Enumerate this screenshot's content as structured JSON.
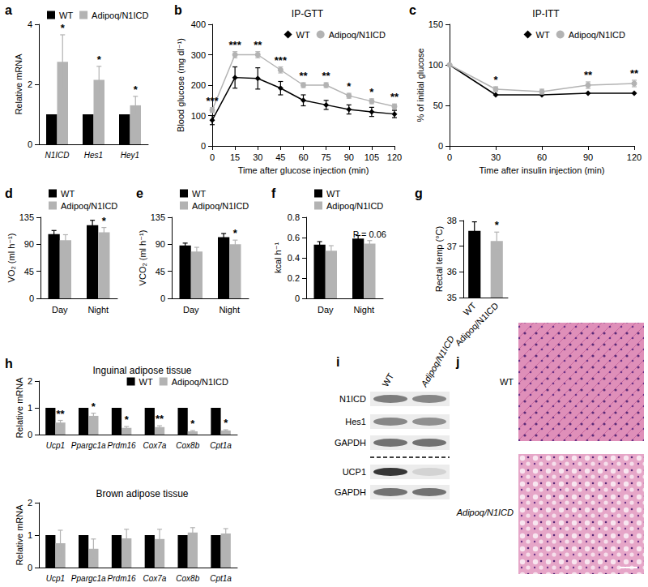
{
  "chart_data": [
    {
      "label": "a",
      "type": "bar",
      "categories": [
        "N1ICD",
        "Hes1",
        "Hey1"
      ],
      "y_label": "Relative mRNA",
      "ylim": [
        0,
        4
      ],
      "yticks": [
        0,
        2,
        4
      ],
      "legend": "top-left",
      "series": [
        {
          "name": "WT",
          "color": "#000000",
          "values": [
            1,
            1,
            1
          ]
        },
        {
          "name": "Adipoq/N1ICD",
          "color": "#b3b3b3",
          "values": [
            2.75,
            2.15,
            1.3
          ],
          "errors": [
            0.9,
            0.45,
            0.3
          ],
          "annotations": [
            "*",
            "*",
            "*"
          ]
        }
      ]
    },
    {
      "label": "b",
      "type": "line",
      "title": "IP-GTT",
      "x": [
        0,
        15,
        30,
        45,
        60,
        75,
        90,
        105,
        120
      ],
      "x_label": "Time after glucose injection (min)",
      "y_label": "Blood glucose (mg dl⁻¹)",
      "xlim": [
        0,
        120
      ],
      "xticks": [
        0,
        15,
        30,
        45,
        60,
        75,
        90,
        105,
        120
      ],
      "ylim": [
        0,
        400
      ],
      "yticks": [
        0,
        100,
        200,
        300,
        400
      ],
      "legend": "top-right",
      "series": [
        {
          "name": "WT",
          "color": "#000000",
          "marker": "diamond",
          "values": [
            85,
            225,
            222,
            190,
            150,
            135,
            120,
            112,
            105
          ],
          "errors": [
            15,
            35,
            35,
            22,
            18,
            15,
            15,
            15,
            12
          ]
        },
        {
          "name": "Adipoq/N1ICD",
          "color": "#b3b3b3",
          "marker": "circle",
          "values": [
            118,
            300,
            300,
            250,
            200,
            200,
            165,
            147,
            130
          ],
          "errors": [
            8,
            10,
            10,
            10,
            8,
            8,
            8,
            8,
            8
          ],
          "annotations": [
            "***",
            "***",
            "**",
            "***",
            "**",
            "**",
            "*",
            "*",
            "**"
          ]
        }
      ]
    },
    {
      "label": "c",
      "type": "line",
      "title": "IP-ITT",
      "x": [
        0,
        30,
        60,
        90,
        120
      ],
      "x_label": "Time after insulin injection (min)",
      "y_label": "% of initial glucose",
      "xlim": [
        0,
        120
      ],
      "xticks": [
        0,
        30,
        60,
        90,
        120
      ],
      "ylim": [
        0,
        150
      ],
      "yticks": [
        0,
        50,
        100,
        150
      ],
      "legend": "top-right",
      "series": [
        {
          "name": "WT",
          "color": "#000000",
          "marker": "diamond",
          "values": [
            100,
            63,
            63,
            65,
            65
          ]
        },
        {
          "name": "Adipoq/N1ICD",
          "color": "#b3b3b3",
          "marker": "circle",
          "values": [
            100,
            70,
            67,
            75,
            77
          ],
          "errors": [
            0,
            3,
            3,
            4,
            4
          ],
          "annotations": [
            null,
            "*",
            null,
            "**",
            "**"
          ]
        }
      ]
    },
    {
      "label": "d",
      "type": "bar",
      "categories": [
        "Day",
        "Night"
      ],
      "y_label": "VO₂ (ml h⁻¹)",
      "ylim": [
        0,
        135
      ],
      "yticks": [
        0,
        45,
        90,
        135
      ],
      "legend": "top-left",
      "series": [
        {
          "name": "WT",
          "color": "#000000",
          "values": [
            107,
            122
          ],
          "errors": [
            6,
            8
          ]
        },
        {
          "name": "Adipoq/N1ICD",
          "color": "#b3b3b3",
          "values": [
            97,
            110
          ],
          "errors": [
            9,
            8
          ],
          "annotations": [
            null,
            "*"
          ]
        }
      ]
    },
    {
      "label": "e",
      "type": "bar",
      "categories": [
        "Day",
        "Night"
      ],
      "y_label": "VCO₂ (ml h⁻¹)",
      "ylim": [
        0,
        135
      ],
      "yticks": [
        0,
        45,
        90,
        135
      ],
      "legend": "top-left",
      "series": [
        {
          "name": "WT",
          "color": "#000000",
          "values": [
            88,
            102
          ],
          "errors": [
            4,
            6
          ]
        },
        {
          "name": "Adipoq/N1ICD",
          "color": "#b3b3b3",
          "values": [
            78,
            90
          ],
          "errors": [
            7,
            7
          ],
          "annotations": [
            null,
            "*"
          ]
        }
      ]
    },
    {
      "label": "f",
      "type": "bar",
      "categories": [
        "Day",
        "Night"
      ],
      "y_label": "kcal h⁻¹",
      "ylim": [
        0,
        0.8
      ],
      "yticks": [
        0,
        0.2,
        0.4,
        0.6,
        0.8
      ],
      "legend": "top-left",
      "series": [
        {
          "name": "WT",
          "color": "#000000",
          "values": [
            0.53,
            0.59
          ],
          "errors": [
            0.03,
            0.03
          ]
        },
        {
          "name": "Adipoq/N1ICD",
          "color": "#b3b3b3",
          "values": [
            0.47,
            0.54
          ],
          "errors": [
            0.05,
            0.03
          ],
          "annotations": [
            null,
            "P = 0.06"
          ]
        }
      ]
    },
    {
      "label": "g",
      "type": "bar",
      "categories": [
        "WT",
        "Adipoq/N1ICD"
      ],
      "y_label": "Rectal temp (°C)",
      "ylim": [
        35,
        38
      ],
      "yticks": [
        35,
        36,
        37,
        38
      ],
      "values": [
        37.6,
        37.2
      ],
      "errors": [
        0.35,
        0.35
      ],
      "colors": [
        "#000000",
        "#b3b3b3"
      ],
      "annotations": [
        null,
        "*"
      ]
    },
    {
      "label": "h",
      "type": "bar",
      "title": "Inguinal adipose tissue",
      "categories": [
        "Ucp1",
        "Ppargc1a",
        "Prdm16",
        "Cox7a",
        "Cox8b",
        "Cpt1a"
      ],
      "y_label": "Relative mRNA",
      "ylim": [
        0,
        2
      ],
      "yticks": [
        0,
        1,
        2
      ],
      "legend": "top-right",
      "series": [
        {
          "name": "WT",
          "color": "#000000",
          "values": [
            1,
            1,
            1,
            1,
            1,
            1
          ]
        },
        {
          "name": "Adipoq/N1ICD",
          "color": "#b3b3b3",
          "values": [
            0.45,
            0.7,
            0.25,
            0.28,
            0.12,
            0.15
          ],
          "errors": [
            0.08,
            0.1,
            0.05,
            0.05,
            0.03,
            0.03
          ],
          "annotations": [
            "**",
            "*",
            "*",
            "**",
            "*",
            "*"
          ]
        }
      ]
    },
    {
      "type": "bar",
      "title": "Brown adipose tissue",
      "categories": [
        "Ucp1",
        "Ppargc1a",
        "Prdm16",
        "Cox7a",
        "Cox8b",
        "Cpt1a"
      ],
      "y_label": "Relative mRNA",
      "ylim": [
        0,
        2
      ],
      "yticks": [
        0,
        1,
        2
      ],
      "series": [
        {
          "name": "WT",
          "color": "#000000",
          "values": [
            1,
            1,
            1,
            1,
            1,
            1
          ]
        },
        {
          "name": "Adipoq/N1ICD",
          "color": "#b3b3b3",
          "values": [
            0.75,
            0.58,
            0.9,
            0.88,
            1.08,
            1.05
          ],
          "errors": [
            0.4,
            0.3,
            0.28,
            0.3,
            0.15,
            0.15
          ]
        }
      ]
    }
  ],
  "panels": {
    "i": {
      "label": "i",
      "columns": [
        "WT",
        "Adipoq/N1ICD"
      ],
      "rows": [
        "N1ICD",
        "Hes1",
        "GAPDH",
        "UCP1",
        "GAPDH"
      ]
    },
    "j": {
      "label": "j",
      "images": [
        "WT",
        "Adipoq/N1ICD"
      ]
    }
  }
}
